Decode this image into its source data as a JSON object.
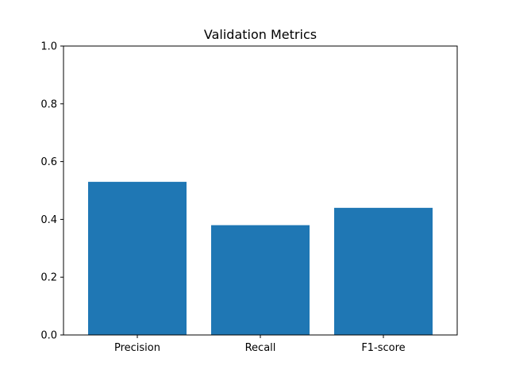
{
  "chart_data": {
    "type": "bar",
    "title": "Validation Metrics",
    "xlabel": "",
    "ylabel": "",
    "categories": [
      "Precision",
      "Recall",
      "F1-score"
    ],
    "values": [
      0.53,
      0.38,
      0.44
    ],
    "ylim": [
      0,
      1.0
    ],
    "yticks": [
      "0.0",
      "0.2",
      "0.4",
      "0.6",
      "0.8",
      "1.0"
    ],
    "grid": false,
    "legend": "none",
    "bar_color": "#1f77b4"
  }
}
